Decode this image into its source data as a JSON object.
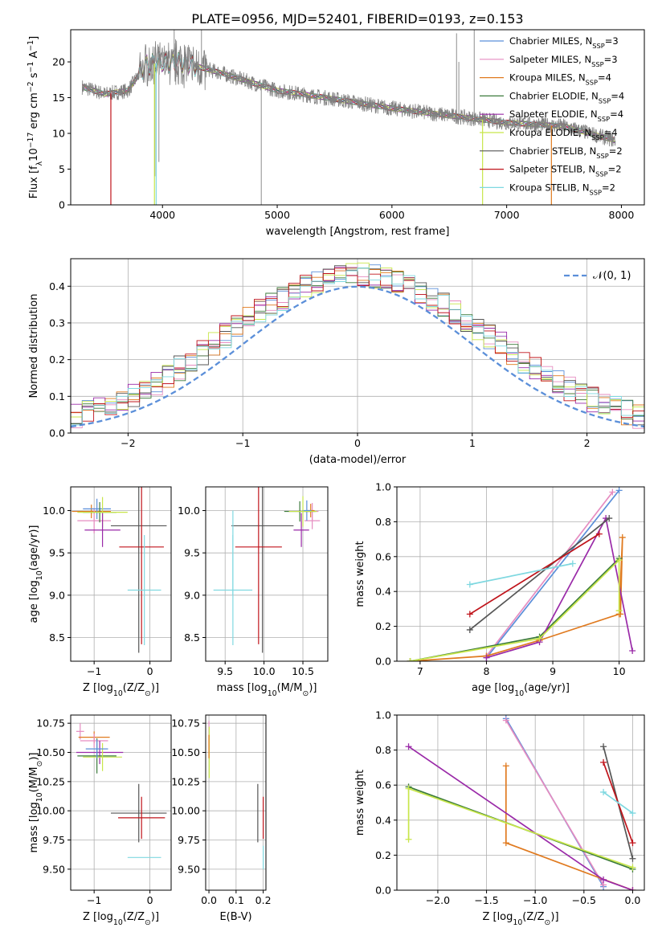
{
  "figure_title": "PLATE=0956, MJD=52401, FIBERID=0193, z=0.153",
  "colors": {
    "chabrier_miles": "#5b8fd9",
    "salpeter_miles": "#e68cc0",
    "kroupa_miles": "#e07a1f",
    "chabrier_elodie": "#3b7a3b",
    "salpeter_elodie": "#9a2aa8",
    "kroupa_elodie": "#c8e64a",
    "chabrier_stelib": "#555555",
    "salpeter_stelib": "#c0141b",
    "kroupa_stelib": "#7fd8e0",
    "data": "#808080",
    "gaussian": "#5b8fd9",
    "grid": "#b0b0b0"
  },
  "legend": {
    "entries": [
      {
        "base": "Chabrier MILES, N",
        "sub": "SSP",
        "tail": "=3",
        "color_key": "chabrier_miles"
      },
      {
        "base": "Salpeter MILES, N",
        "sub": "SSP",
        "tail": "=3",
        "color_key": "salpeter_miles"
      },
      {
        "base": "Kroupa MILES, N",
        "sub": "SSP",
        "tail": "=4",
        "color_key": "kroupa_miles"
      },
      {
        "base": "Chabrier ELODIE, N",
        "sub": "SSP",
        "tail": "=4",
        "color_key": "chabrier_elodie"
      },
      {
        "base": "Salpeter ELODIE, N",
        "sub": "SSP",
        "tail": "=4",
        "color_key": "salpeter_elodie"
      },
      {
        "base": "Kroupa ELODIE, N",
        "sub": "SSP",
        "tail": "=4",
        "color_key": "kroupa_elodie"
      },
      {
        "base": "Chabrier STELIB, N",
        "sub": "SSP",
        "tail": "=2",
        "color_key": "chabrier_stelib"
      },
      {
        "base": "Salpeter STELIB, N",
        "sub": "SSP",
        "tail": "=2",
        "color_key": "salpeter_stelib"
      },
      {
        "base": "Kroupa STELIB, N",
        "sub": "SSP",
        "tail": "=2",
        "color_key": "kroupa_stelib"
      }
    ]
  },
  "chart_data": [
    {
      "id": "spectrum",
      "type": "line",
      "xlabel": "wavelength [Angstrom, rest frame]",
      "ylabel": {
        "pre": "Flux [f",
        "sub": "λ",
        "mid": "10",
        "sup": "−17",
        "post": " erg cm",
        "sup2": "−2",
        "post2": " s",
        "sup3": "−1",
        "post3": " A",
        "sup4": "−1",
        "end": "]"
      },
      "xlim": [
        3200,
        8200
      ],
      "ylim": [
        0,
        24.5
      ],
      "xticks": [
        4000,
        5000,
        6000,
        7000,
        8000
      ],
      "yticks": [
        0,
        5,
        10,
        15,
        20
      ],
      "data_range": [
        3300,
        7950
      ],
      "continuum": [
        [
          3300,
          16.5
        ],
        [
          3500,
          15.5
        ],
        [
          3700,
          16.0
        ],
        [
          3850,
          19.5
        ],
        [
          4000,
          20.0
        ],
        [
          4200,
          19.8
        ],
        [
          4500,
          18.5
        ],
        [
          5000,
          16.0
        ],
        [
          5500,
          14.8
        ],
        [
          6000,
          13.5
        ],
        [
          6500,
          12.5
        ],
        [
          7000,
          11.5
        ],
        [
          7500,
          11.0
        ],
        [
          7950,
          9.0
        ]
      ],
      "model_dropouts": [
        {
          "x": 3550,
          "color_key": "salpeter_stelib"
        },
        {
          "x": 3930,
          "color_key": "kroupa_elodie"
        },
        {
          "x": 3945,
          "color_key": "kroupa_stelib"
        },
        {
          "x": 6790,
          "color_key": "kroupa_elodie"
        },
        {
          "x": 7390,
          "color_key": "kroupa_miles"
        }
      ]
    },
    {
      "id": "residuals",
      "type": "area",
      "xlabel": "(data-model)/error",
      "ylabel": "Normed distribution",
      "xlim": [
        -2.5,
        2.5
      ],
      "ylim": [
        0,
        0.475
      ],
      "xticks": [
        -2,
        -1,
        0,
        1,
        2
      ],
      "yticks": [
        0.0,
        0.1,
        0.2,
        0.3,
        0.4
      ],
      "legend_label": "𝒩(0, 1)",
      "grid": true
    },
    {
      "id": "z_age",
      "type": "scatter",
      "xlabel": {
        "pre": "Z [log",
        "sub": "10",
        "post": "(Z/Z",
        "sub2": "⊙",
        "end": ")]"
      },
      "ylabel": {
        "pre": "age  [log",
        "sub": "10",
        "post": "(age/yr)]"
      },
      "xlim": [
        -1.42,
        0.38
      ],
      "ylim": [
        8.22,
        10.28
      ],
      "xticks": [
        -1,
        0
      ],
      "yticks": [
        8.5,
        9.0,
        9.5,
        10.0
      ],
      "grid": true,
      "points": [
        {
          "x": -1.05,
          "y": 9.99,
          "xerr": 0.35,
          "yerr": 0.08,
          "color_key": "kroupa_miles"
        },
        {
          "x": -1.0,
          "y": 9.88,
          "xerr": 0.3,
          "yerr": 0.15,
          "color_key": "salpeter_miles"
        },
        {
          "x": -0.95,
          "y": 10.02,
          "xerr": 0.25,
          "yerr": 0.12,
          "color_key": "chabrier_miles"
        },
        {
          "x": -0.9,
          "y": 9.98,
          "xerr": 0.3,
          "yerr": 0.12,
          "color_key": "chabrier_elodie"
        },
        {
          "x": -0.85,
          "y": 9.98,
          "xerr": 0.45,
          "yerr": 0.18,
          "color_key": "kroupa_elodie"
        },
        {
          "x": -0.85,
          "y": 9.77,
          "xerr": 0.32,
          "yerr": 0.2,
          "color_key": "salpeter_elodie"
        },
        {
          "x": -0.2,
          "y": 9.82,
          "xerr": 0.5,
          "yerr": 1.5,
          "color_key": "chabrier_stelib"
        },
        {
          "x": -0.15,
          "y": 9.57,
          "xerr": 0.4,
          "yerr": 1.15,
          "color_key": "salpeter_stelib"
        },
        {
          "x": -0.1,
          "y": 9.06,
          "xerr": 0.3,
          "yerr": 0.65,
          "color_key": "kroupa_stelib"
        }
      ]
    },
    {
      "id": "mass_age",
      "type": "scatter",
      "xlabel": {
        "pre": "mass [log",
        "sub": "10",
        "post": "(M/M",
        "sub2": "⊙",
        "end": ")]"
      },
      "ylabel": null,
      "xlim": [
        9.25,
        10.82
      ],
      "ylim": [
        8.22,
        10.28
      ],
      "xticks": [
        9.5,
        10.0,
        10.5
      ],
      "yticks": [
        8.5,
        9.0,
        9.5,
        10.0
      ],
      "grid": true,
      "points": [
        {
          "x": 10.62,
          "y": 9.99,
          "xerr": 0.08,
          "yerr": 0.1,
          "color_key": "salpeter_miles"
        },
        {
          "x": 10.62,
          "y": 9.88,
          "xerr": 0.1,
          "yerr": 0.1,
          "color_key": "salpeter_miles"
        },
        {
          "x": 10.6,
          "y": 10.0,
          "xerr": 0.05,
          "yerr": 0.08,
          "color_key": "kroupa_miles"
        },
        {
          "x": 10.55,
          "y": 10.0,
          "xerr": 0.06,
          "yerr": 0.12,
          "color_key": "chabrier_miles"
        },
        {
          "x": 10.46,
          "y": 9.99,
          "xerr": 0.2,
          "yerr": 0.12,
          "color_key": "chabrier_elodie"
        },
        {
          "x": 10.5,
          "y": 9.99,
          "xerr": 0.18,
          "yerr": 0.18,
          "color_key": "kroupa_elodie"
        },
        {
          "x": 10.48,
          "y": 9.77,
          "xerr": 0.1,
          "yerr": 0.2,
          "color_key": "salpeter_elodie"
        },
        {
          "x": 9.98,
          "y": 9.82,
          "xerr": 0.4,
          "yerr": 1.5,
          "color_key": "chabrier_stelib"
        },
        {
          "x": 9.93,
          "y": 9.57,
          "xerr": 0.3,
          "yerr": 1.15,
          "color_key": "salpeter_stelib"
        },
        {
          "x": 9.6,
          "y": 9.06,
          "xerr": 0.25,
          "yerr": 0.65,
          "color_key": "kroupa_stelib"
        },
        {
          "x": 9.6,
          "y": 9.5,
          "xerr": 0.0,
          "yerr": 0.5,
          "color_key": "kroupa_stelib"
        }
      ]
    },
    {
      "id": "age_weight",
      "type": "line",
      "xlabel": {
        "pre": "age  [log",
        "sub": "10",
        "post": "(age/yr)]"
      },
      "ylabel": "mass weight",
      "xlim": [
        6.65,
        10.38
      ],
      "ylim": [
        0,
        1.0
      ],
      "xticks": [
        7,
        8,
        9,
        10
      ],
      "yticks": [
        0.0,
        0.2,
        0.4,
        0.6,
        0.8,
        1.0
      ],
      "grid": true,
      "series": [
        {
          "color_key": "chabrier_miles",
          "x": [
            8.0,
            10.0
          ],
          "y": [
            0.02,
            0.98
          ]
        },
        {
          "color_key": "salpeter_miles",
          "x": [
            8.0,
            9.9
          ],
          "y": [
            0.03,
            0.97
          ]
        },
        {
          "color_key": "kroupa_miles",
          "x": [
            6.85,
            8.0,
            8.8,
            10.0,
            10.05,
            10.02
          ],
          "y": [
            0.0,
            0.03,
            0.12,
            0.27,
            0.71,
            0.27
          ]
        },
        {
          "color_key": "chabrier_elodie",
          "x": [
            6.85,
            8.8,
            10.0
          ],
          "y": [
            0.0,
            0.14,
            0.59
          ]
        },
        {
          "color_key": "salpeter_elodie",
          "x": [
            8.0,
            8.8,
            9.8,
            10.2
          ],
          "y": [
            0.02,
            0.11,
            0.82,
            0.06
          ]
        },
        {
          "color_key": "kroupa_elodie",
          "x": [
            6.85,
            8.8,
            10.0,
            10.0
          ],
          "y": [
            0.0,
            0.13,
            0.58,
            0.29
          ]
        },
        {
          "color_key": "chabrier_stelib",
          "x": [
            7.75,
            9.85
          ],
          "y": [
            0.18,
            0.82
          ]
        },
        {
          "color_key": "salpeter_stelib",
          "x": [
            7.75,
            9.7
          ],
          "y": [
            0.27,
            0.73
          ]
        },
        {
          "color_key": "kroupa_stelib",
          "x": [
            7.75,
            9.3
          ],
          "y": [
            0.44,
            0.56
          ]
        }
      ]
    },
    {
      "id": "z_mass",
      "type": "scatter",
      "xlabel": {
        "pre": "Z [log",
        "sub": "10",
        "post": "(Z/Z",
        "sub2": "⊙",
        "end": ")]"
      },
      "ylabel": {
        "pre": "mass [log",
        "sub": "10",
        "post": "(M/M",
        "sub2": "⊙",
        "end": ")]"
      },
      "xlim": [
        -1.42,
        0.38
      ],
      "ylim": [
        9.32,
        10.82
      ],
      "xticks": [
        -1,
        0
      ],
      "yticks": [
        9.5,
        9.75,
        10.0,
        10.25,
        10.5,
        10.75
      ],
      "grid": true,
      "points": [
        {
          "x": -1.25,
          "y": 10.68,
          "xerr": 0.07,
          "yerr": 0.07,
          "color_key": "salpeter_miles"
        },
        {
          "x": -1.0,
          "y": 10.63,
          "xerr": 0.28,
          "yerr": 0.05,
          "color_key": "kroupa_miles"
        },
        {
          "x": -1.0,
          "y": 10.6,
          "xerr": 0.25,
          "yerr": 0.06,
          "color_key": "salpeter_miles"
        },
        {
          "x": -0.9,
          "y": 10.5,
          "xerr": 0.42,
          "yerr": 0.1,
          "color_key": "salpeter_elodie"
        },
        {
          "x": -0.95,
          "y": 10.47,
          "xerr": 0.35,
          "yerr": 0.15,
          "color_key": "chabrier_elodie"
        },
        {
          "x": -0.85,
          "y": 10.46,
          "xerr": 0.35,
          "yerr": 0.12,
          "color_key": "kroupa_elodie"
        },
        {
          "x": -0.95,
          "y": 10.53,
          "xerr": 0.2,
          "yerr": 0.08,
          "color_key": "chabrier_miles"
        },
        {
          "x": -0.2,
          "y": 9.98,
          "xerr": 0.5,
          "yerr": 0.25,
          "color_key": "chabrier_stelib"
        },
        {
          "x": -0.15,
          "y": 9.94,
          "xerr": 0.42,
          "yerr": 0.18,
          "color_key": "salpeter_stelib"
        },
        {
          "x": -0.1,
          "y": 9.6,
          "xerr": 0.3,
          "yerr": 0.0,
          "color_key": "kroupa_stelib"
        }
      ]
    },
    {
      "id": "ebv_mass",
      "type": "scatter",
      "xlabel": "E(B-V)",
      "ylabel": null,
      "xlim": [
        -0.012,
        0.21
      ],
      "ylim": [
        9.32,
        10.82
      ],
      "xticks": [
        0.0,
        0.1,
        0.2
      ],
      "yticks": [
        9.5,
        9.75,
        10.0,
        10.25,
        10.5,
        10.75
      ],
      "grid": true,
      "points": [
        {
          "x": 0.0,
          "y": 10.65,
          "xerr": 0.0,
          "yerr": 0.12,
          "color_key": "salpeter_miles"
        },
        {
          "x": 0.001,
          "y": 10.5,
          "xerr": 0.0,
          "yerr": 0.22,
          "color_key": "kroupa_elodie"
        },
        {
          "x": 0.0,
          "y": 10.55,
          "xerr": 0.0,
          "yerr": 0.1,
          "color_key": "kroupa_miles"
        },
        {
          "x": 0.18,
          "y": 9.98,
          "xerr": 0.0,
          "yerr": 0.25,
          "color_key": "chabrier_stelib"
        },
        {
          "x": 0.2,
          "y": 9.94,
          "xerr": 0.0,
          "yerr": 0.18,
          "color_key": "salpeter_stelib"
        },
        {
          "x": 0.2,
          "y": 9.6,
          "xerr": 0.0,
          "yerr": 0.1,
          "color_key": "kroupa_stelib"
        }
      ]
    },
    {
      "id": "z_weight",
      "type": "line",
      "xlabel": {
        "pre": "Z [log",
        "sub": "10",
        "post": "(Z/Z",
        "sub2": "⊙",
        "end": ")]"
      },
      "ylabel": "mass weight",
      "xlim": [
        -2.42,
        0.12
      ],
      "ylim": [
        0,
        1.0
      ],
      "xticks": [
        -2.0,
        -1.5,
        -1.0,
        -0.5,
        0.0
      ],
      "yticks": [
        0.0,
        0.2,
        0.4,
        0.6,
        0.8,
        1.0
      ],
      "grid": true,
      "series": [
        {
          "color_key": "chabrier_miles",
          "x": [
            -1.3,
            -0.3
          ],
          "y": [
            0.98,
            0.02
          ]
        },
        {
          "color_key": "salpeter_miles",
          "x": [
            -1.3,
            -0.3
          ],
          "y": [
            0.97,
            0.03
          ]
        },
        {
          "color_key": "kroupa_miles",
          "x": [
            -1.3,
            -1.3,
            0.0
          ],
          "y": [
            0.71,
            0.27,
            0.0
          ]
        },
        {
          "color_key": "chabrier_elodie",
          "x": [
            -2.3,
            0.0
          ],
          "y": [
            0.59,
            0.12
          ]
        },
        {
          "color_key": "salpeter_elodie",
          "x": [
            -2.3,
            -0.3,
            0.0
          ],
          "y": [
            0.82,
            0.06,
            0.0
          ]
        },
        {
          "color_key": "kroupa_elodie",
          "x": [
            -2.3,
            -2.3,
            0.0
          ],
          "y": [
            0.29,
            0.58,
            0.13
          ]
        },
        {
          "color_key": "chabrier_stelib",
          "x": [
            -0.3,
            0.0
          ],
          "y": [
            0.82,
            0.18
          ]
        },
        {
          "color_key": "salpeter_stelib",
          "x": [
            -0.3,
            0.0
          ],
          "y": [
            0.73,
            0.27
          ]
        },
        {
          "color_key": "kroupa_stelib",
          "x": [
            -0.3,
            0.0
          ],
          "y": [
            0.56,
            0.44
          ]
        }
      ]
    }
  ]
}
